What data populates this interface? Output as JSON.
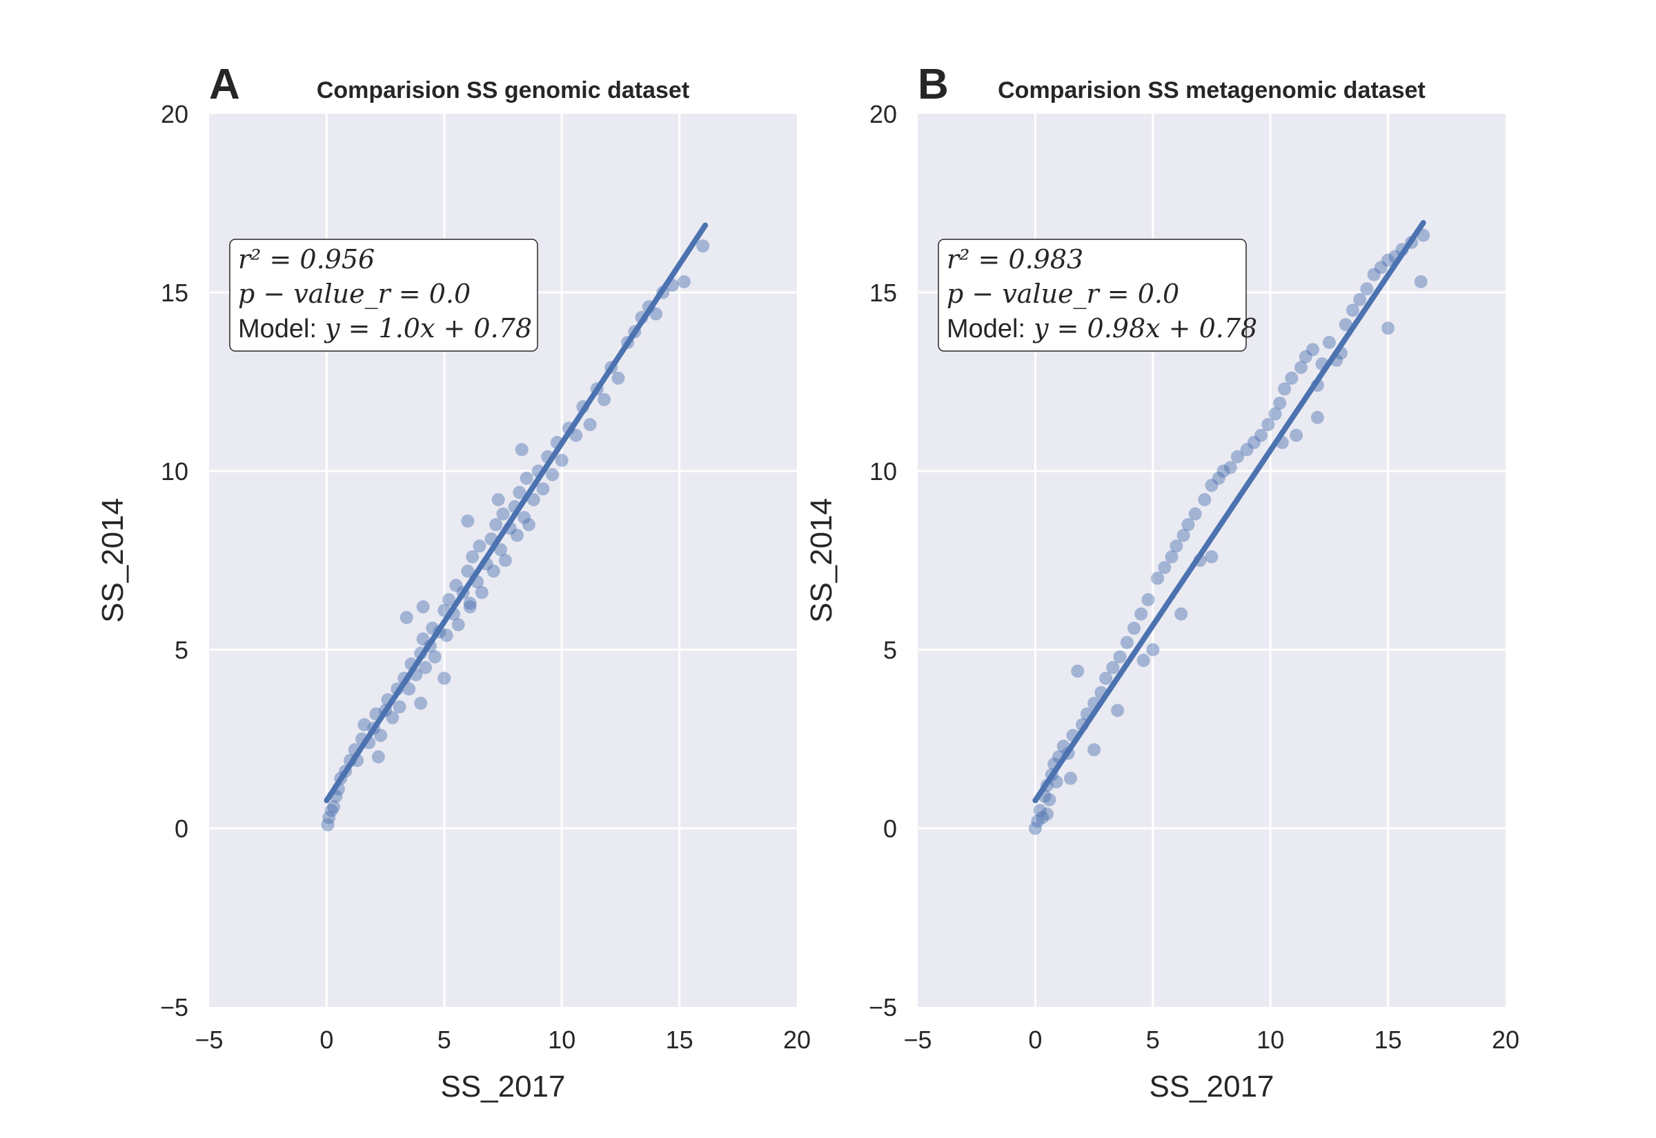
{
  "chart_data": [
    {
      "type": "scatter",
      "panel_letter": "A",
      "title": "Comparision SS genomic dataset",
      "xlabel": "SS_2017",
      "ylabel": "SS_2014",
      "xlim": [
        -5,
        20
      ],
      "ylim": [
        -5,
        20
      ],
      "xticks": [
        "−5",
        "0",
        "5",
        "10",
        "15",
        "20"
      ],
      "yticks": [
        "−5",
        "0",
        "5",
        "10",
        "15",
        "20"
      ],
      "grid": true,
      "color": "#4C72B0",
      "background": "#EAEAF2",
      "fit": {
        "slope": 1.0,
        "intercept": 0.78,
        "x_range": [
          0,
          16.1
        ]
      },
      "stats": {
        "r2": "r² = 0.956",
        "pvalue": "p − value_r = 0.0",
        "model_prefix": "Model:",
        "model_eq": "y = 1.0x + 0.78"
      },
      "points": [
        [
          0.05,
          0.1
        ],
        [
          0.1,
          0.3
        ],
        [
          0.2,
          0.5
        ],
        [
          0.3,
          0.6
        ],
        [
          0.4,
          0.9
        ],
        [
          0.5,
          1.1
        ],
        [
          0.6,
          1.4
        ],
        [
          0.8,
          1.6
        ],
        [
          1.0,
          1.9
        ],
        [
          1.2,
          2.2
        ],
        [
          1.3,
          1.9
        ],
        [
          1.5,
          2.5
        ],
        [
          1.6,
          2.9
        ],
        [
          1.8,
          2.4
        ],
        [
          2.0,
          2.8
        ],
        [
          2.1,
          3.2
        ],
        [
          2.3,
          2.6
        ],
        [
          2.5,
          3.3
        ],
        [
          2.6,
          3.6
        ],
        [
          2.8,
          3.1
        ],
        [
          3.0,
          3.9
        ],
        [
          3.1,
          3.4
        ],
        [
          3.3,
          4.2
        ],
        [
          3.5,
          3.9
        ],
        [
          3.6,
          4.6
        ],
        [
          3.8,
          4.3
        ],
        [
          4.0,
          4.9
        ],
        [
          4.1,
          5.3
        ],
        [
          4.2,
          4.5
        ],
        [
          4.4,
          5.1
        ],
        [
          4.5,
          5.6
        ],
        [
          4.6,
          4.8
        ],
        [
          4.8,
          5.5
        ],
        [
          5.0,
          6.1
        ],
        [
          5.1,
          5.4
        ],
        [
          5.2,
          6.4
        ],
        [
          5.4,
          6.0
        ],
        [
          5.5,
          6.8
        ],
        [
          5.6,
          5.7
        ],
        [
          5.8,
          6.6
        ],
        [
          6.0,
          7.2
        ],
        [
          6.1,
          6.3
        ],
        [
          6.2,
          7.6
        ],
        [
          6.4,
          6.9
        ],
        [
          6.5,
          7.9
        ],
        [
          6.6,
          6.6
        ],
        [
          6.8,
          7.4
        ],
        [
          7.0,
          8.1
        ],
        [
          7.1,
          7.2
        ],
        [
          7.2,
          8.5
        ],
        [
          7.4,
          7.8
        ],
        [
          7.5,
          8.8
        ],
        [
          7.6,
          7.5
        ],
        [
          7.8,
          8.4
        ],
        [
          8.0,
          9.0
        ],
        [
          8.1,
          8.2
        ],
        [
          8.2,
          9.4
        ],
        [
          8.4,
          8.7
        ],
        [
          8.5,
          9.8
        ],
        [
          8.6,
          8.5
        ],
        [
          8.8,
          9.2
        ],
        [
          9.0,
          10.0
        ],
        [
          9.2,
          9.5
        ],
        [
          9.4,
          10.4
        ],
        [
          9.6,
          9.9
        ],
        [
          9.8,
          10.8
        ],
        [
          10.0,
          10.3
        ],
        [
          10.3,
          11.2
        ],
        [
          10.6,
          11.0
        ],
        [
          10.9,
          11.8
        ],
        [
          11.2,
          11.3
        ],
        [
          11.5,
          12.3
        ],
        [
          11.8,
          12.0
        ],
        [
          12.1,
          12.9
        ],
        [
          12.4,
          12.6
        ],
        [
          12.8,
          13.6
        ],
        [
          13.1,
          13.9
        ],
        [
          13.4,
          14.3
        ],
        [
          13.7,
          14.6
        ],
        [
          14.0,
          14.4
        ],
        [
          14.3,
          15.0
        ],
        [
          14.7,
          15.2
        ],
        [
          15.2,
          15.3
        ],
        [
          16.0,
          16.3
        ],
        [
          3.4,
          5.9
        ],
        [
          4.1,
          6.2
        ],
        [
          6.0,
          8.6
        ],
        [
          7.3,
          9.2
        ],
        [
          8.3,
          10.6
        ],
        [
          6.1,
          6.2
        ],
        [
          5.0,
          4.2
        ],
        [
          4.0,
          3.5
        ],
        [
          2.2,
          2.0
        ]
      ]
    },
    {
      "type": "scatter",
      "panel_letter": "B",
      "title": "Comparision SS metagenomic dataset",
      "xlabel": "SS_2017",
      "ylabel": "SS_2014",
      "xlim": [
        -5,
        20
      ],
      "ylim": [
        -5,
        20
      ],
      "xticks": [
        "−5",
        "0",
        "5",
        "10",
        "15",
        "20"
      ],
      "yticks": [
        "−5",
        "0",
        "5",
        "10",
        "15",
        "20"
      ],
      "grid": true,
      "color": "#4C72B0",
      "background": "#EAEAF2",
      "fit": {
        "slope": 0.98,
        "intercept": 0.78,
        "x_range": [
          0,
          16.5
        ]
      },
      "stats": {
        "r2": "r² = 0.983",
        "pvalue": "p − value_r = 0.0",
        "model_prefix": "Model:",
        "model_eq": "y = 0.98x + 0.78"
      },
      "points": [
        [
          0.0,
          0.0
        ],
        [
          0.1,
          0.2
        ],
        [
          0.2,
          0.5
        ],
        [
          0.3,
          0.3
        ],
        [
          0.4,
          0.9
        ],
        [
          0.5,
          1.2
        ],
        [
          0.6,
          0.8
        ],
        [
          0.7,
          1.5
        ],
        [
          0.8,
          1.8
        ],
        [
          0.9,
          1.3
        ],
        [
          1.0,
          2.0
        ],
        [
          1.2,
          2.3
        ],
        [
          1.4,
          2.1
        ],
        [
          1.6,
          2.6
        ],
        [
          1.8,
          4.4
        ],
        [
          2.0,
          2.9
        ],
        [
          2.2,
          3.2
        ],
        [
          2.5,
          3.5
        ],
        [
          2.8,
          3.8
        ],
        [
          3.0,
          4.2
        ],
        [
          3.3,
          4.5
        ],
        [
          3.6,
          4.8
        ],
        [
          3.9,
          5.2
        ],
        [
          4.2,
          5.6
        ],
        [
          4.5,
          6.0
        ],
        [
          4.8,
          6.4
        ],
        [
          5.0,
          5.0
        ],
        [
          5.2,
          7.0
        ],
        [
          5.5,
          7.3
        ],
        [
          5.8,
          7.6
        ],
        [
          6.0,
          7.9
        ],
        [
          6.3,
          8.2
        ],
        [
          6.5,
          8.5
        ],
        [
          6.8,
          8.8
        ],
        [
          7.0,
          7.5
        ],
        [
          7.2,
          9.2
        ],
        [
          7.5,
          9.6
        ],
        [
          7.8,
          9.8
        ],
        [
          8.0,
          10.0
        ],
        [
          8.3,
          10.1
        ],
        [
          8.6,
          10.4
        ],
        [
          9.0,
          10.6
        ],
        [
          9.3,
          10.8
        ],
        [
          9.6,
          11.0
        ],
        [
          9.9,
          11.3
        ],
        [
          10.2,
          11.6
        ],
        [
          10.4,
          11.9
        ],
        [
          10.6,
          12.3
        ],
        [
          10.9,
          12.6
        ],
        [
          11.1,
          11.0
        ],
        [
          11.3,
          12.9
        ],
        [
          11.5,
          13.2
        ],
        [
          11.8,
          13.4
        ],
        [
          12.0,
          12.4
        ],
        [
          12.2,
          13.0
        ],
        [
          12.5,
          13.6
        ],
        [
          12.8,
          13.1
        ],
        [
          13.0,
          13.3
        ],
        [
          13.2,
          14.1
        ],
        [
          13.5,
          14.5
        ],
        [
          13.8,
          14.8
        ],
        [
          14.1,
          15.1
        ],
        [
          14.4,
          15.5
        ],
        [
          14.7,
          15.7
        ],
        [
          15.0,
          15.9
        ],
        [
          15.3,
          16.0
        ],
        [
          15.6,
          16.2
        ],
        [
          16.0,
          16.4
        ],
        [
          16.5,
          16.6
        ],
        [
          16.4,
          15.3
        ],
        [
          15.0,
          14.0
        ],
        [
          12.0,
          11.5
        ],
        [
          10.5,
          10.8
        ],
        [
          7.5,
          7.6
        ],
        [
          6.2,
          6.0
        ],
        [
          4.6,
          4.7
        ],
        [
          3.5,
          3.3
        ],
        [
          2.5,
          2.2
        ],
        [
          1.5,
          1.4
        ],
        [
          0.5,
          0.4
        ]
      ]
    }
  ]
}
